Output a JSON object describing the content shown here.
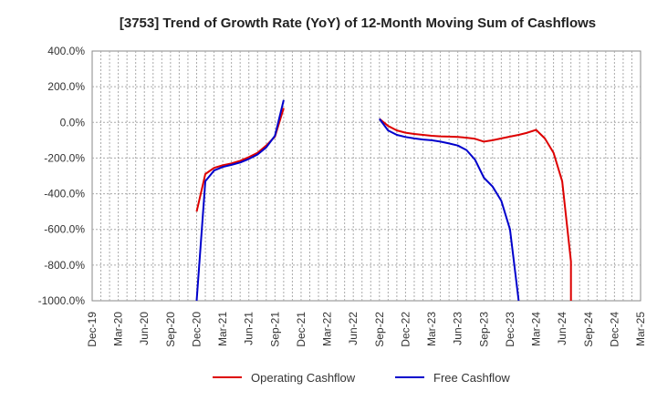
{
  "chart_data": {
    "type": "line",
    "title": "[3753]  Trend of Growth Rate (YoY) of 12-Month Moving Sum of Cashflows",
    "xlabel": "",
    "ylabel": "",
    "ylim": [
      -1000,
      400
    ],
    "grid": true,
    "legend_position": "bottom",
    "y_ticks": [
      "400.0%",
      "200.0%",
      "0.0%",
      "-200.0%",
      "-400.0%",
      "-600.0%",
      "-800.0%",
      "-1000.0%"
    ],
    "x_ticks": [
      "Dec-19",
      "Mar-20",
      "Jun-20",
      "Sep-20",
      "Dec-20",
      "Mar-21",
      "Jun-21",
      "Sep-21",
      "Dec-21",
      "Mar-22",
      "Jun-22",
      "Sep-22",
      "Dec-22",
      "Mar-23",
      "Jun-23",
      "Sep-23",
      "Dec-23",
      "Mar-24",
      "Jun-24",
      "Sep-24",
      "Dec-24",
      "Mar-25"
    ],
    "series": [
      {
        "name": "Operating Cashflow",
        "color": "#dd0000",
        "points": [
          [
            "2020-12",
            -500
          ],
          [
            "2021-01",
            -290
          ],
          [
            "2021-02",
            -255
          ],
          [
            "2021-03",
            -240
          ],
          [
            "2021-04",
            -230
          ],
          [
            "2021-05",
            -215
          ],
          [
            "2021-06",
            -195
          ],
          [
            "2021-07",
            -170
          ],
          [
            "2021-08",
            -130
          ],
          [
            "2021-09",
            -80
          ],
          [
            "2021-10",
            80
          ],
          [
            "2022-09",
            20
          ],
          [
            "2022-10",
            -20
          ],
          [
            "2022-11",
            -45
          ],
          [
            "2022-12",
            -58
          ],
          [
            "2023-01",
            -65
          ],
          [
            "2023-02",
            -70
          ],
          [
            "2023-03",
            -75
          ],
          [
            "2023-04",
            -78
          ],
          [
            "2023-05",
            -80
          ],
          [
            "2023-06",
            -82
          ],
          [
            "2023-07",
            -86
          ],
          [
            "2023-08",
            -92
          ],
          [
            "2023-09",
            -108
          ],
          [
            "2023-10",
            -100
          ],
          [
            "2023-11",
            -90
          ],
          [
            "2023-12",
            -80
          ],
          [
            "2024-01",
            -70
          ],
          [
            "2024-02",
            -58
          ],
          [
            "2024-03",
            -42
          ],
          [
            "2024-04",
            -90
          ],
          [
            "2024-05",
            -170
          ],
          [
            "2024-06",
            -330
          ],
          [
            "2024-07",
            -780
          ],
          [
            "2024-07",
            -1000
          ]
        ]
      },
      {
        "name": "Free Cashflow",
        "color": "#0000cc",
        "points": [
          [
            "2020-12",
            -1000
          ],
          [
            "2021-01",
            -330
          ],
          [
            "2021-02",
            -270
          ],
          [
            "2021-03",
            -250
          ],
          [
            "2021-04",
            -238
          ],
          [
            "2021-05",
            -225
          ],
          [
            "2021-06",
            -205
          ],
          [
            "2021-07",
            -180
          ],
          [
            "2021-08",
            -140
          ],
          [
            "2021-09",
            -75
          ],
          [
            "2021-10",
            125
          ],
          [
            "2022-09",
            20
          ],
          [
            "2022-10",
            -45
          ],
          [
            "2022-11",
            -70
          ],
          [
            "2022-12",
            -82
          ],
          [
            "2023-01",
            -90
          ],
          [
            "2023-02",
            -96
          ],
          [
            "2023-03",
            -100
          ],
          [
            "2023-04",
            -108
          ],
          [
            "2023-05",
            -118
          ],
          [
            "2023-06",
            -130
          ],
          [
            "2023-07",
            -155
          ],
          [
            "2023-08",
            -210
          ],
          [
            "2023-09",
            -310
          ],
          [
            "2023-10",
            -360
          ],
          [
            "2023-11",
            -440
          ],
          [
            "2023-12",
            -600
          ],
          [
            "2024-01",
            -1000
          ]
        ]
      }
    ]
  }
}
